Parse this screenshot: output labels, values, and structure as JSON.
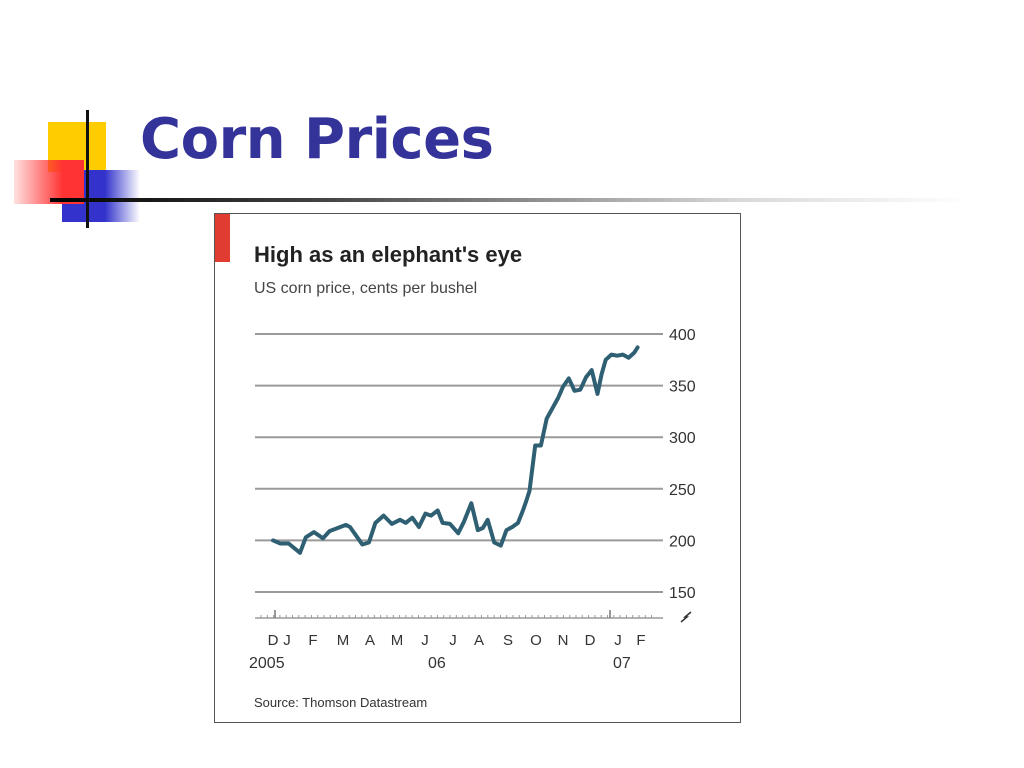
{
  "slide": {
    "title": "Corn Prices"
  },
  "colors": {
    "title": "#333399",
    "accent_yellow": "#ffcc00",
    "accent_blue": "#3333cc",
    "accent_red": "#ff3333",
    "chart_line": "#2f5f72",
    "chart_tag": "#e03c31"
  },
  "chart_data": {
    "type": "line",
    "title": "High as an elephant's eye",
    "subtitle": "US corn price, cents per bushel",
    "source": "Source: Thomson Datastream",
    "ylim": [
      140,
      400
    ],
    "y_ticks": [
      "400",
      "350",
      "300",
      "250",
      "200",
      "150"
    ],
    "y_break": true,
    "grid": true,
    "month_labels": [
      "D",
      "J",
      "F",
      "M",
      "A",
      "M",
      "J",
      "J",
      "A",
      "S",
      "O",
      "N",
      "D",
      "J",
      "F"
    ],
    "year_labels": [
      "2005",
      "06",
      "07"
    ],
    "x_range": [
      "2005-12-01",
      "2007-02-28"
    ],
    "series": [
      {
        "x": [
          "2005-12-01",
          "2005-12-10",
          "2005-12-20",
          "2006-01-03",
          "2006-01-10",
          "2006-01-20",
          "2006-01-31",
          "2006-02-08",
          "2006-02-18",
          "2006-02-28",
          "2006-03-05",
          "2006-03-12",
          "2006-03-20",
          "2006-03-28",
          "2006-04-05",
          "2006-04-15",
          "2006-04-25",
          "2006-05-05",
          "2006-05-12",
          "2006-05-20",
          "2006-05-28",
          "2006-06-05",
          "2006-06-12",
          "2006-06-20",
          "2006-06-26",
          "2006-07-05",
          "2006-07-15",
          "2006-07-22",
          "2006-07-31",
          "2006-08-08",
          "2006-08-14",
          "2006-08-20",
          "2006-08-28",
          "2006-09-05",
          "2006-09-12",
          "2006-09-19",
          "2006-09-26",
          "2006-10-02",
          "2006-10-06",
          "2006-10-10",
          "2006-10-17",
          "2006-10-24",
          "2006-10-31",
          "2006-11-07",
          "2006-11-14",
          "2006-11-20",
          "2006-11-27",
          "2006-12-04",
          "2006-12-11",
          "2006-12-18",
          "2006-12-25",
          "2007-01-01",
          "2007-01-06",
          "2007-01-11",
          "2007-01-18",
          "2007-01-25",
          "2007-02-01",
          "2007-02-08",
          "2007-02-15",
          "2007-02-19"
        ],
        "y": [
          200,
          197,
          197,
          188,
          203,
          208,
          202,
          209,
          212,
          215,
          213,
          205,
          196,
          198,
          217,
          224,
          216,
          220,
          217,
          222,
          213,
          226,
          224,
          229,
          217,
          216,
          207,
          218,
          236,
          210,
          212,
          220,
          198,
          195,
          210,
          213,
          217,
          229,
          238,
          248,
          292,
          292,
          318,
          328,
          338,
          349,
          357,
          345,
          346,
          358,
          365,
          342,
          361,
          375,
          380,
          379,
          380,
          377,
          382,
          387
        ]
      }
    ]
  }
}
